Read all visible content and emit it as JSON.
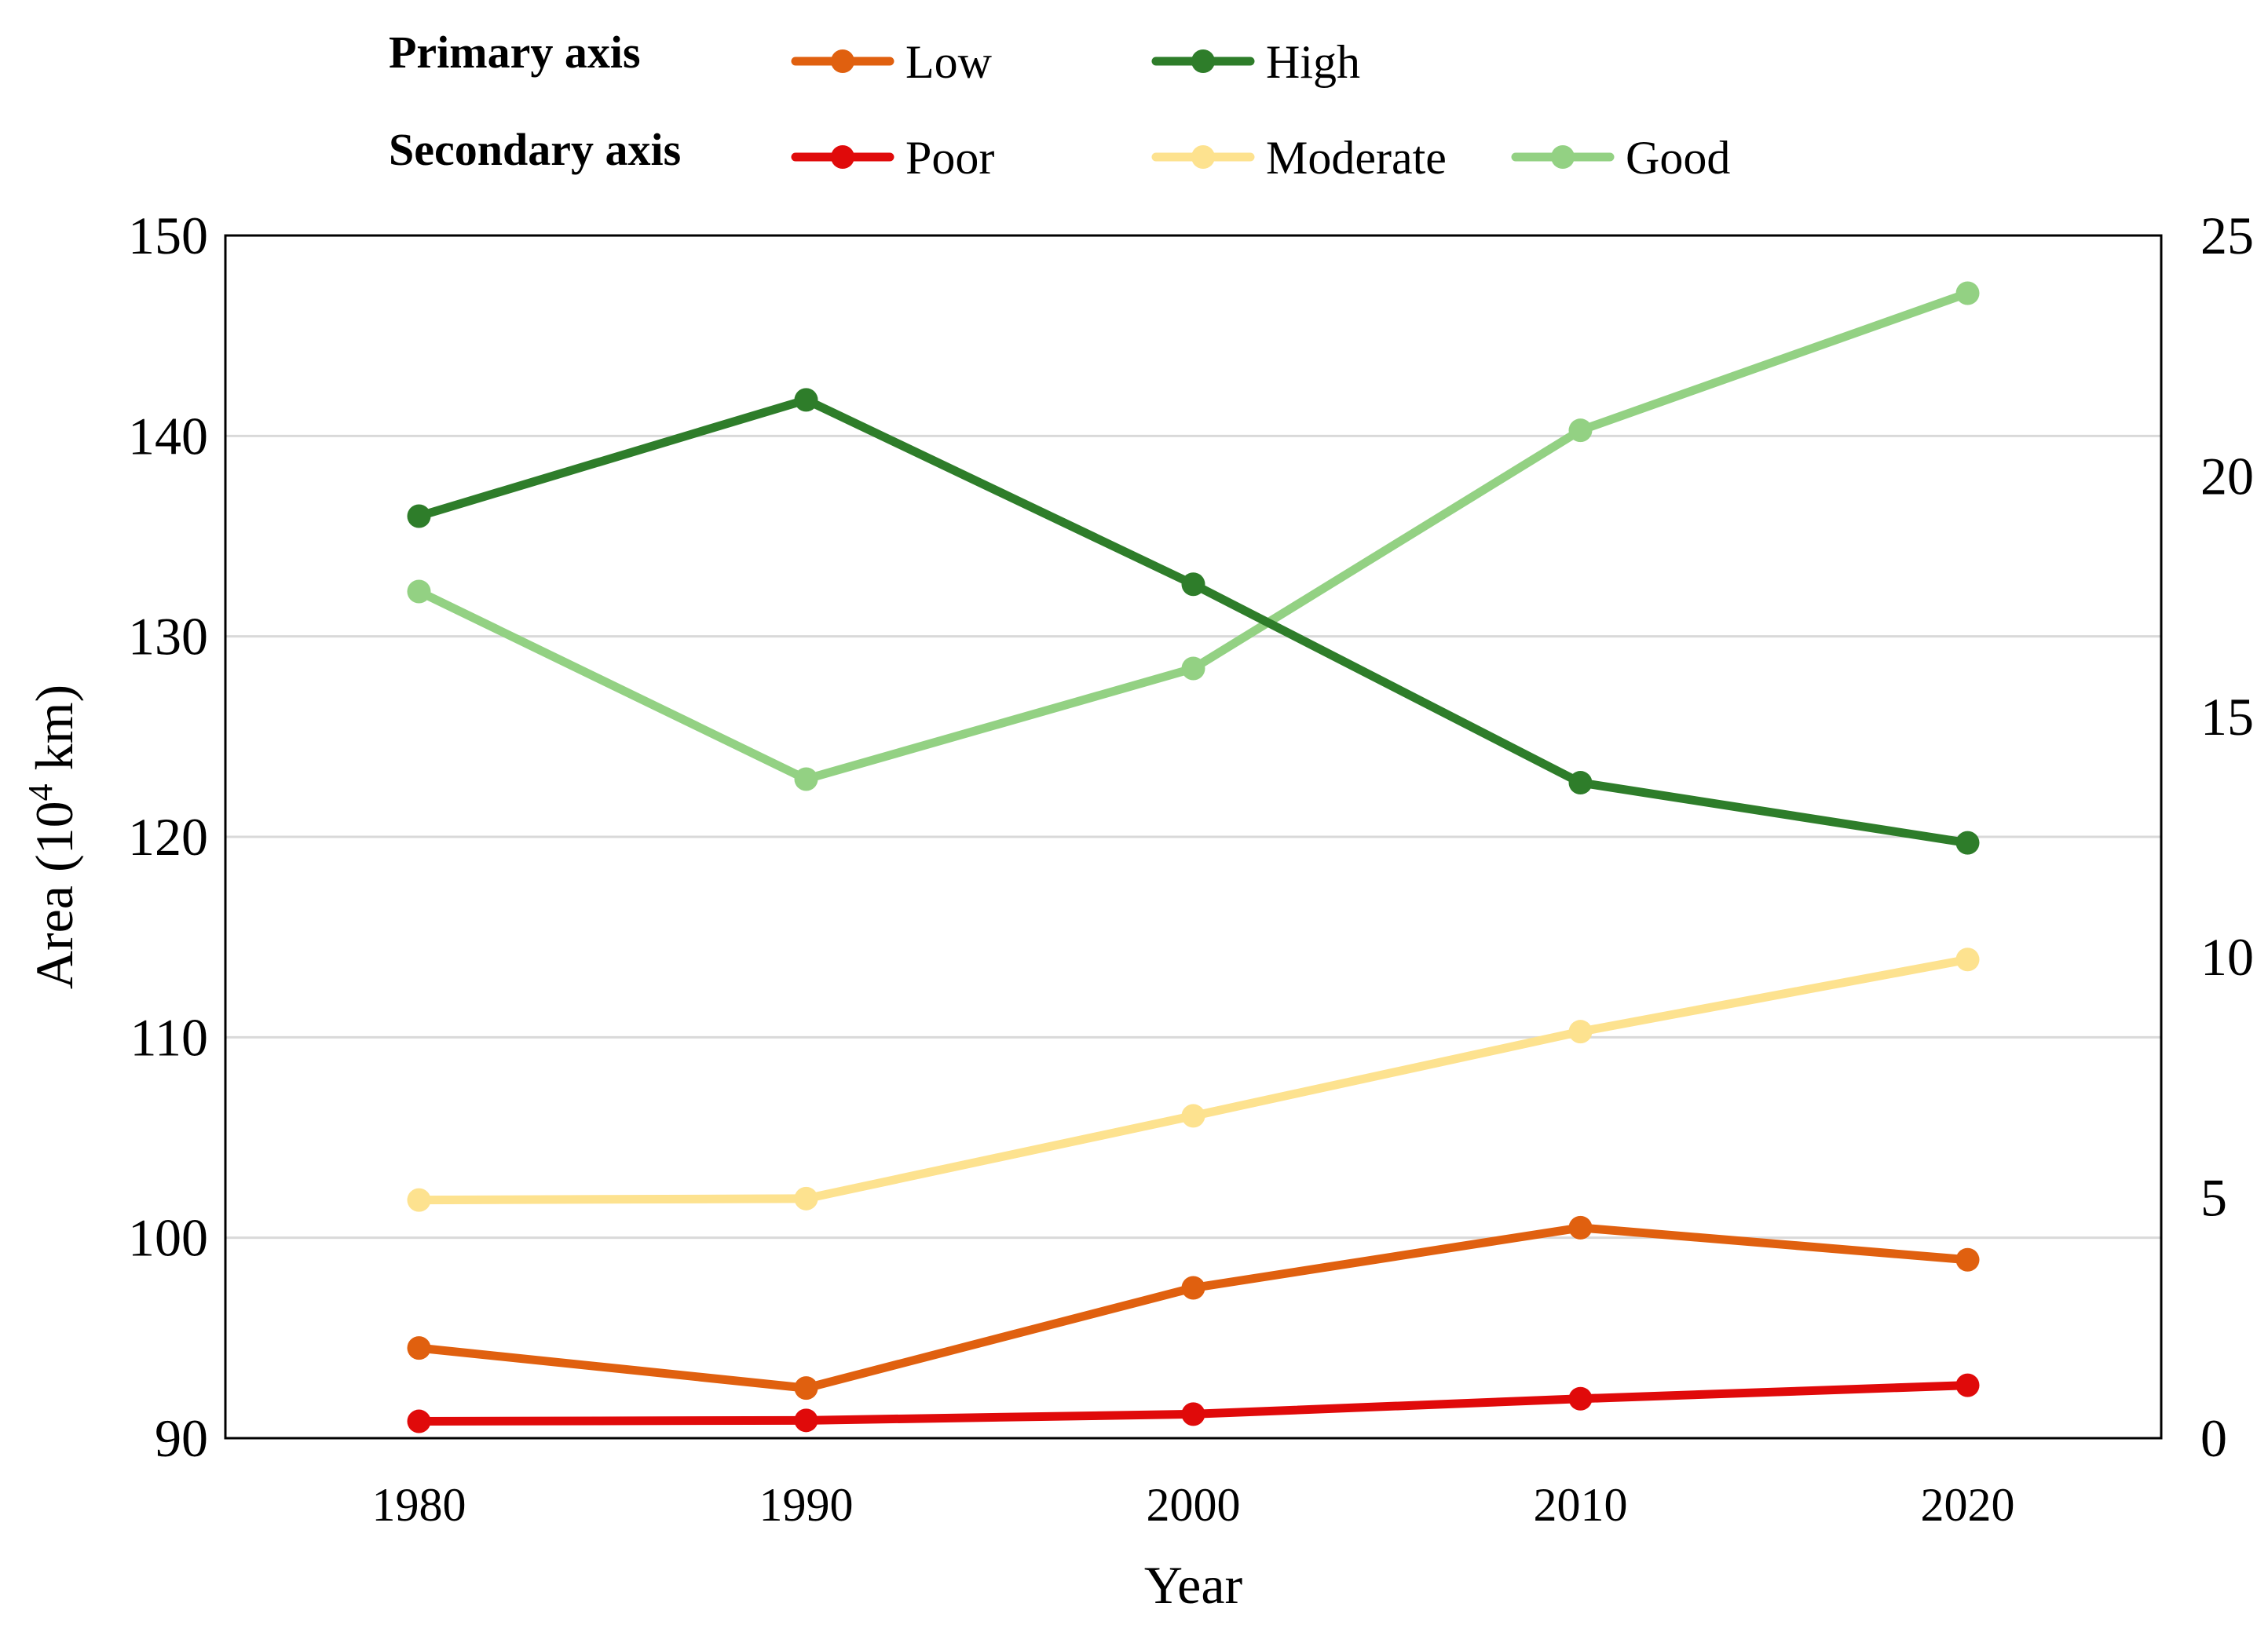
{
  "chart_data": {
    "type": "line",
    "title": "",
    "xlabel": "Year",
    "ylabel": "Area (10",
    "ylabel_sup": "4",
    "ylabel_tail": " km)",
    "x": [
      1980,
      1990,
      2000,
      2010,
      2020
    ],
    "xlim": [
      1975,
      2025
    ],
    "ylim_primary": [
      90,
      150
    ],
    "ylim_secondary": [
      0,
      25
    ],
    "yticks_primary": [
      90,
      100,
      110,
      120,
      130,
      140,
      150
    ],
    "yticks_secondary": [
      0,
      5,
      10,
      15,
      20,
      25
    ],
    "grid": true,
    "legend_placement": "top",
    "legend_groups": {
      "primary": "Primary axis",
      "secondary": "Secondary axis"
    },
    "series": [
      {
        "name": "Low",
        "axis": "primary",
        "color": "#e0600f",
        "values": [
          94.5,
          92.5,
          97.5,
          100.5,
          98.9
        ]
      },
      {
        "name": "High",
        "axis": "primary",
        "color": "#2e7d2a",
        "values": [
          136.0,
          141.8,
          132.6,
          122.7,
          119.7
        ]
      },
      {
        "name": "Poor",
        "axis": "secondary",
        "color": "#e00a0a",
        "values": [
          0.35,
          0.37,
          0.5,
          0.82,
          1.1
        ]
      },
      {
        "name": "Moderate",
        "axis": "secondary",
        "color": "#fde28f",
        "values": [
          4.95,
          4.98,
          6.7,
          8.45,
          9.95
        ]
      },
      {
        "name": "Good",
        "axis": "secondary",
        "color": "#93d183",
        "values": [
          17.6,
          13.7,
          16.0,
          20.95,
          23.8
        ]
      }
    ]
  }
}
